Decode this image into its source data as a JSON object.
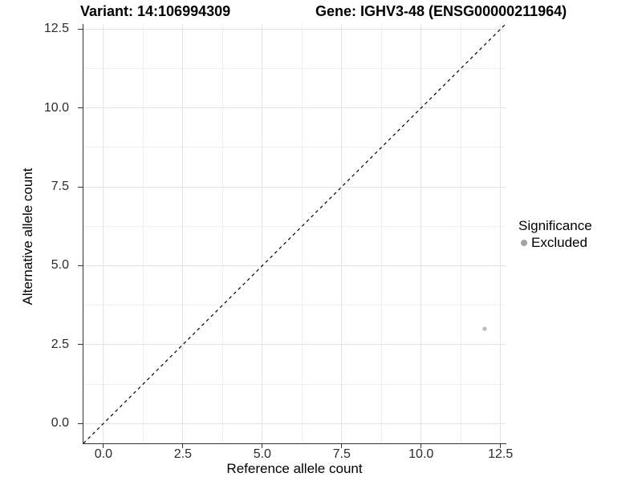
{
  "chart_data": {
    "type": "scatter",
    "titles": {
      "variant": "Variant: 14:106994309",
      "gene": "Gene: IGHV3-48 (ENSG00000211964)"
    },
    "xlabel": "Reference allele count",
    "ylabel": "Alternative allele count",
    "xlim": [
      -0.63,
      12.66
    ],
    "ylim": [
      -0.63,
      12.66
    ],
    "xticks": [
      0.0,
      2.5,
      5.0,
      7.5,
      10.0,
      12.5
    ],
    "yticks": [
      0.0,
      2.5,
      5.0,
      7.5,
      10.0,
      12.5
    ],
    "grid": {
      "major": true,
      "minor": true
    },
    "reference_line": {
      "slope": 1,
      "intercept": 0,
      "style": "dashed",
      "color": "#000000"
    },
    "points": [
      {
        "x": 12,
        "y": 3,
        "series": "Excluded",
        "color": "#bcbcbc"
      }
    ],
    "legend": {
      "title": "Significance",
      "position": "right",
      "items": [
        {
          "label": "Excluded",
          "color": "#a3a3a3"
        }
      ]
    },
    "style": {
      "background": "#ffffff",
      "grid_major_color": "#e4e4e4",
      "grid_minor_color": "#f0f0f0",
      "axis_line_color": "#333333",
      "axis_text_color": "#2b2b2b",
      "title_color": "#000000"
    }
  }
}
